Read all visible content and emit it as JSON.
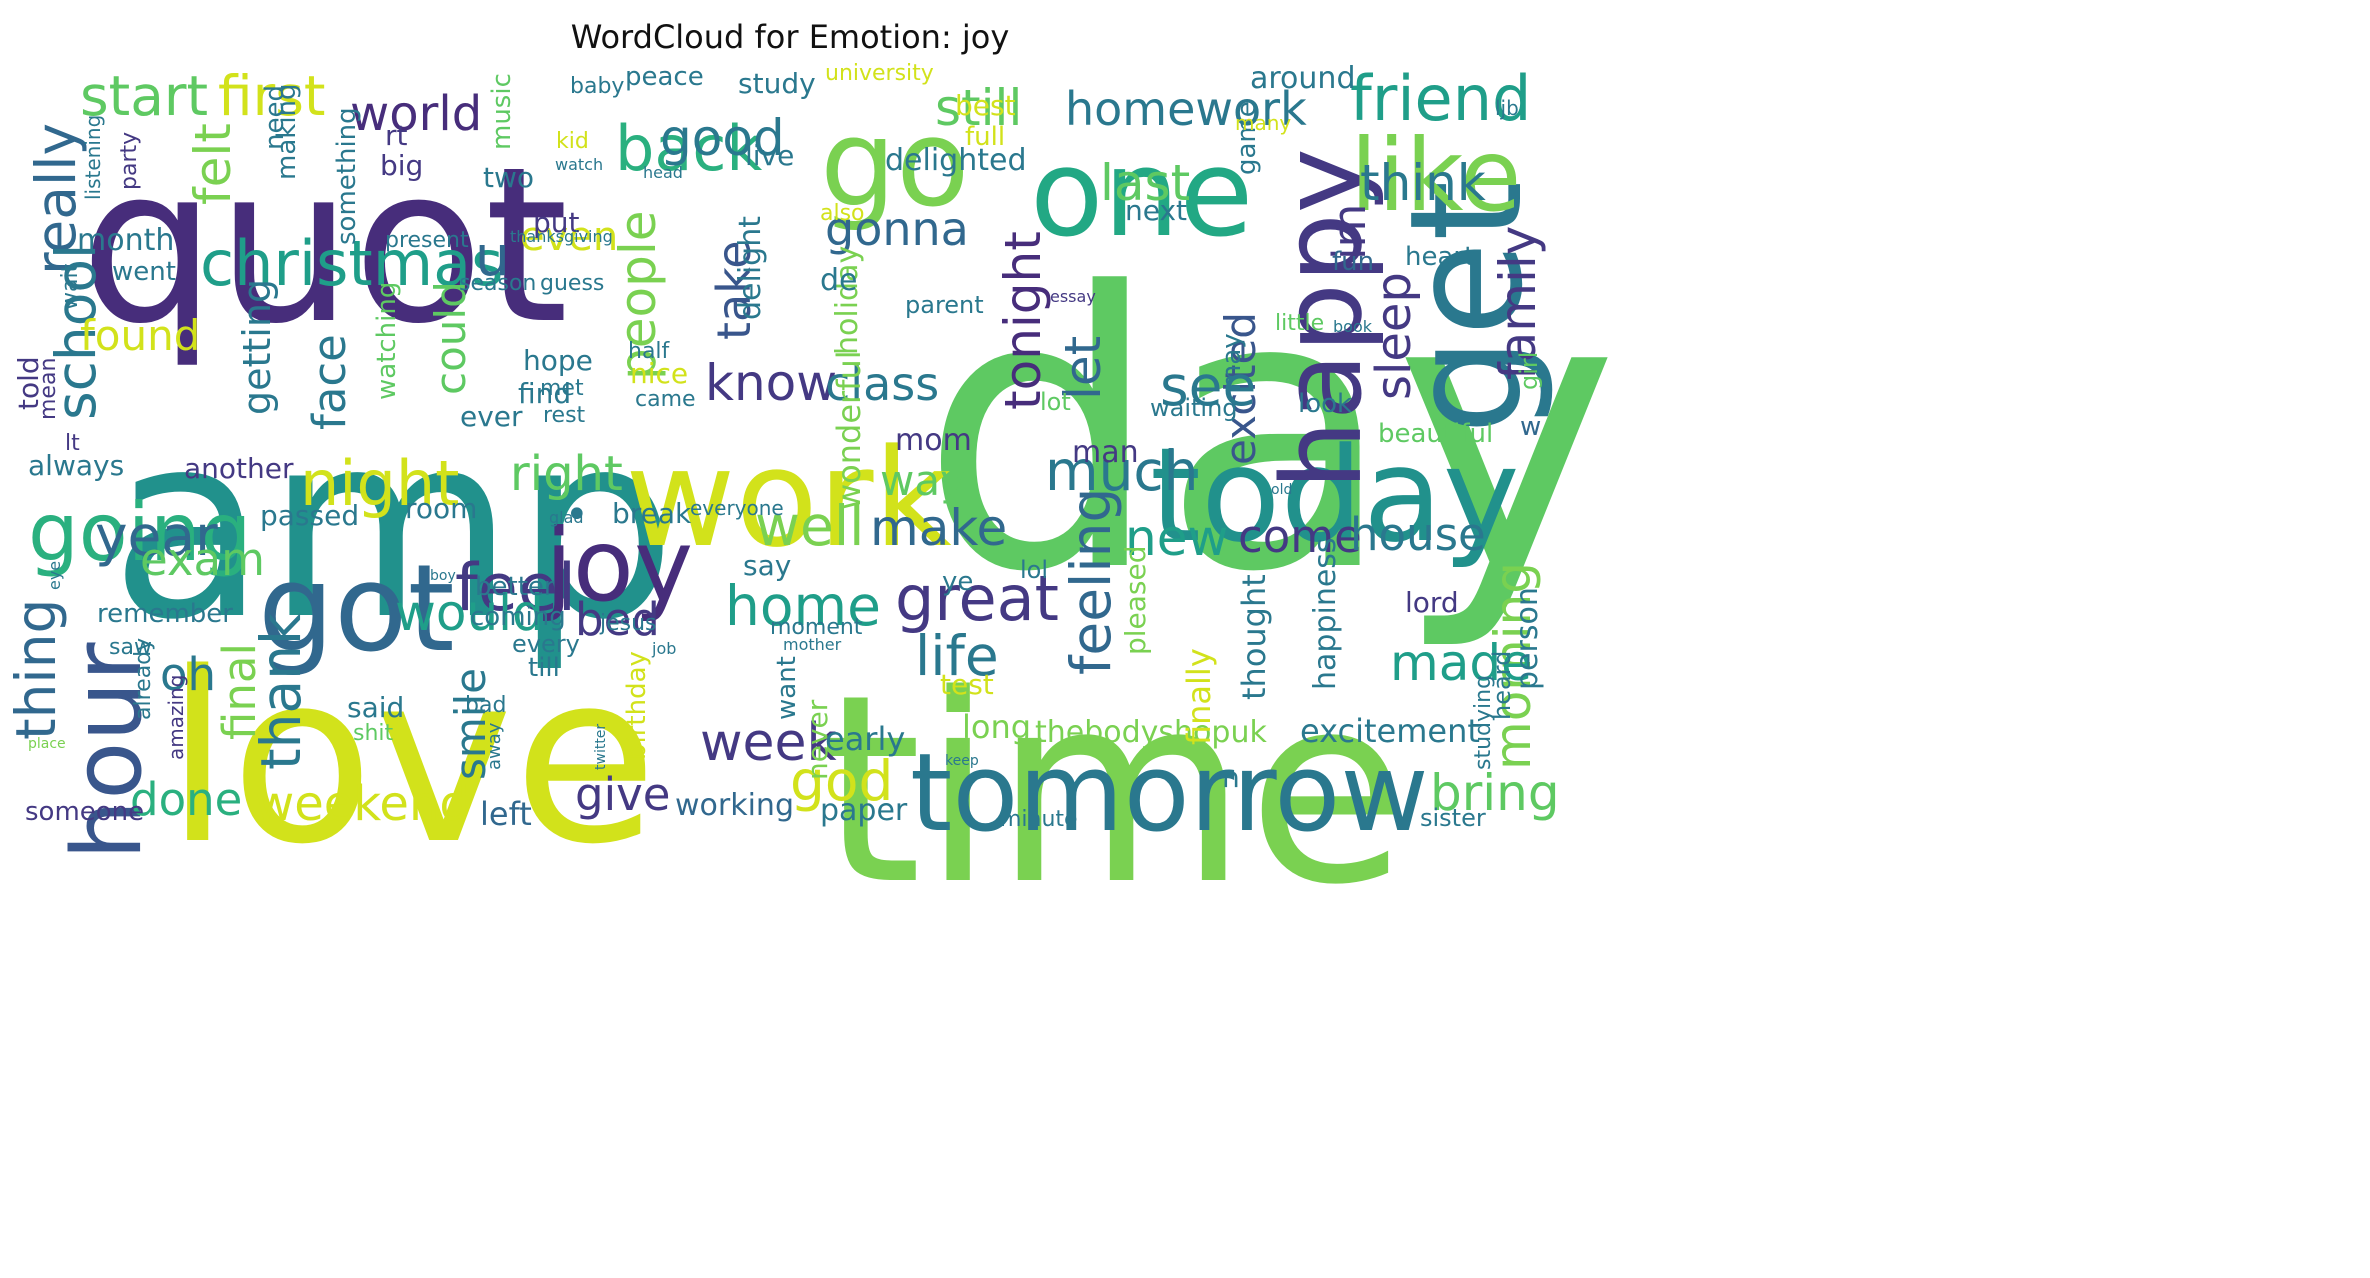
{
  "title": "WordCloud for Emotion: joy",
  "words": [
    {
      "text": "day",
      "color": "#5ec962"
    },
    {
      "text": "amp",
      "color": "#21918c"
    },
    {
      "text": "love",
      "color": "#d2e21b"
    },
    {
      "text": "time",
      "color": "#7ad151"
    },
    {
      "text": "quot",
      "color": "#472d7b"
    },
    {
      "text": "work",
      "color": "#d2e21b"
    },
    {
      "text": "get",
      "color": "#2a788e"
    },
    {
      "text": "today",
      "color": "#21918c"
    },
    {
      "text": "tomorrow",
      "color": "#2a788e"
    },
    {
      "text": "one",
      "color": "#22a884"
    },
    {
      "text": "happy",
      "color": "#443983"
    },
    {
      "text": "go",
      "color": "#7ad151"
    },
    {
      "text": "got",
      "color": "#31688e"
    },
    {
      "text": "joy",
      "color": "#472d7b"
    },
    {
      "text": "hour",
      "color": "#39568c"
    },
    {
      "text": "going",
      "color": "#2ab07f"
    },
    {
      "text": "like",
      "color": "#7ad151"
    },
    {
      "text": "friend",
      "color": "#1f9e89"
    },
    {
      "text": "back",
      "color": "#2ab07f"
    },
    {
      "text": "start",
      "color": "#5ec962"
    },
    {
      "text": "first",
      "color": "#d2e21b"
    },
    {
      "text": "world",
      "color": "#472d7b"
    },
    {
      "text": "still",
      "color": "#5ec962"
    },
    {
      "text": "homework",
      "color": "#2a788e"
    },
    {
      "text": "really",
      "color": "#31688e"
    },
    {
      "text": "school",
      "color": "#2a788e"
    },
    {
      "text": "christmas",
      "color": "#1f9e89"
    },
    {
      "text": "u",
      "color": "#31688e"
    },
    {
      "text": "people",
      "color": "#7ad151"
    },
    {
      "text": "good",
      "color": "#2a788e"
    },
    {
      "text": "think",
      "color": "#2a788e"
    },
    {
      "text": "family",
      "color": "#443983"
    },
    {
      "text": "night",
      "color": "#d2e21b"
    },
    {
      "text": "feel",
      "color": "#443983"
    },
    {
      "text": "felt",
      "color": "#7ad151"
    },
    {
      "text": "gonna",
      "color": "#31688e"
    },
    {
      "text": "tonight",
      "color": "#472d7b"
    },
    {
      "text": "last",
      "color": "#5ec962"
    },
    {
      "text": "im",
      "color": "#443983"
    },
    {
      "text": "sleep",
      "color": "#443983"
    },
    {
      "text": "excited",
      "color": "#39568c"
    },
    {
      "text": "see",
      "color": "#2a788e"
    },
    {
      "text": "know",
      "color": "#443983"
    },
    {
      "text": "class",
      "color": "#2a788e"
    },
    {
      "text": "take",
      "color": "#39568c"
    },
    {
      "text": "even",
      "color": "#d2e21b"
    },
    {
      "text": "found",
      "color": "#d2e21b"
    },
    {
      "text": "could",
      "color": "#5ec962"
    },
    {
      "text": "face",
      "color": "#2a788e"
    },
    {
      "text": "getting",
      "color": "#2a788e"
    },
    {
      "text": "let",
      "color": "#31688e"
    },
    {
      "text": "right",
      "color": "#5ec962"
    },
    {
      "text": "much",
      "color": "#2a788e"
    },
    {
      "text": "way",
      "color": "#5ec962"
    },
    {
      "text": "make",
      "color": "#31688e"
    },
    {
      "text": "well",
      "color": "#7ad151"
    },
    {
      "text": "year",
      "color": "#31688e"
    },
    {
      "text": "exam",
      "color": "#5ec962"
    },
    {
      "text": "new",
      "color": "#1f9e89"
    },
    {
      "text": "come",
      "color": "#443983"
    },
    {
      "text": "house",
      "color": "#2a788e"
    },
    {
      "text": "feeling",
      "color": "#31688e"
    },
    {
      "text": "morning",
      "color": "#7ad151"
    },
    {
      "text": "great",
      "color": "#443983"
    },
    {
      "text": "home",
      "color": "#1f9e89"
    },
    {
      "text": "would",
      "color": "#1f9e89"
    },
    {
      "text": "bed",
      "color": "#443983"
    },
    {
      "text": "thing",
      "color": "#31688e"
    },
    {
      "text": "oh",
      "color": "#2a788e"
    },
    {
      "text": "thank",
      "color": "#2a788e"
    },
    {
      "text": "life",
      "color": "#2a788e"
    },
    {
      "text": "made",
      "color": "#1f9e89"
    },
    {
      "text": "final",
      "color": "#7ad151"
    },
    {
      "text": "smile",
      "color": "#2a788e"
    },
    {
      "text": "week",
      "color": "#443983"
    },
    {
      "text": "god",
      "color": "#d2e21b"
    },
    {
      "text": "give",
      "color": "#443983"
    },
    {
      "text": "done",
      "color": "#2ab07f"
    },
    {
      "text": "weekend",
      "color": "#d2e21b"
    },
    {
      "text": "bring",
      "color": "#5ec962"
    },
    {
      "text": "working",
      "color": "#31688e"
    },
    {
      "text": "paper",
      "color": "#2a788e"
    },
    {
      "text": "left",
      "color": "#31688e"
    },
    {
      "text": "someone",
      "color": "#443983"
    },
    {
      "text": "minute",
      "color": "#2a788e"
    },
    {
      "text": "sister",
      "color": "#2a788e"
    },
    {
      "text": "excitement",
      "color": "#2a788e"
    },
    {
      "text": "thebodyshopuk",
      "color": "#7ad151"
    },
    {
      "text": "long",
      "color": "#7ad151"
    },
    {
      "text": "early",
      "color": "#2a788e"
    },
    {
      "text": "never",
      "color": "#7ad151"
    },
    {
      "text": "test",
      "color": "#d2e21b"
    },
    {
      "text": "finally",
      "color": "#d2e21b"
    },
    {
      "text": "thought",
      "color": "#2a788e"
    },
    {
      "text": "happiness",
      "color": "#2a788e"
    },
    {
      "text": "person",
      "color": "#2a788e"
    },
    {
      "text": "heard",
      "color": "#2a788e"
    },
    {
      "text": "studying",
      "color": "#2a788e"
    },
    {
      "text": "lord",
      "color": "#443983"
    },
    {
      "text": "pleased",
      "color": "#7ad151"
    },
    {
      "text": "wonderful",
      "color": "#7ad151"
    },
    {
      "text": "holiday",
      "color": "#7ad151"
    },
    {
      "text": "mom",
      "color": "#443983"
    },
    {
      "text": "man",
      "color": "#443983"
    },
    {
      "text": "lot",
      "color": "#5ec962"
    },
    {
      "text": "look",
      "color": "#2a788e"
    },
    {
      "text": "beautiful",
      "color": "#5ec962"
    },
    {
      "text": "waiting",
      "color": "#2a788e"
    },
    {
      "text": "w",
      "color": "#31688e"
    },
    {
      "text": "girl",
      "color": "#5ec962"
    },
    {
      "text": "may",
      "color": "#2a788e"
    },
    {
      "text": "little",
      "color": "#5ec962"
    },
    {
      "text": "heart",
      "color": "#2a788e"
    },
    {
      "text": "fun",
      "color": "#31688e"
    },
    {
      "text": "essay",
      "color": "#443983"
    },
    {
      "text": "book",
      "color": "#2a788e"
    },
    {
      "text": "parent",
      "color": "#2a788e"
    },
    {
      "text": "delight",
      "color": "#2a788e"
    },
    {
      "text": "de",
      "color": "#2a788e"
    },
    {
      "text": "next",
      "color": "#2a788e"
    },
    {
      "text": "also",
      "color": "#d2e21b"
    },
    {
      "text": "delighted",
      "color": "#2a788e"
    },
    {
      "text": "live",
      "color": "#2a788e"
    },
    {
      "text": "full",
      "color": "#d2e21b"
    },
    {
      "text": "best",
      "color": "#d2e21b"
    },
    {
      "text": "game",
      "color": "#2a788e"
    },
    {
      "text": "many",
      "color": "#d2e21b"
    },
    {
      "text": "around",
      "color": "#2a788e"
    },
    {
      "text": "ljb",
      "color": "#2a788e"
    },
    {
      "text": "study",
      "color": "#2a788e"
    },
    {
      "text": "university",
      "color": "#d2e21b"
    },
    {
      "text": "peace",
      "color": "#2a788e"
    },
    {
      "text": "baby",
      "color": "#2a788e"
    },
    {
      "text": "music",
      "color": "#5ec962"
    },
    {
      "text": "kid",
      "color": "#d2e21b"
    },
    {
      "text": "watch",
      "color": "#2a788e"
    },
    {
      "text": "head",
      "color": "#2a788e"
    },
    {
      "text": "rt",
      "color": "#443983"
    },
    {
      "text": "big",
      "color": "#443983"
    },
    {
      "text": "need",
      "color": "#2a788e"
    },
    {
      "text": "making",
      "color": "#2a788e"
    },
    {
      "text": "something",
      "color": "#2a788e"
    },
    {
      "text": "two",
      "color": "#2a788e"
    },
    {
      "text": "put",
      "color": "#443983"
    },
    {
      "text": "present",
      "color": "#2a788e"
    },
    {
      "text": "thanksgiving",
      "color": "#2a788e"
    },
    {
      "text": "guess",
      "color": "#2a788e"
    },
    {
      "text": "season",
      "color": "#2a788e"
    },
    {
      "text": "party",
      "color": "#443983"
    },
    {
      "text": "listening",
      "color": "#2a788e"
    },
    {
      "text": "month",
      "color": "#2a788e"
    },
    {
      "text": "went",
      "color": "#2a788e"
    },
    {
      "text": "wait",
      "color": "#2a788e"
    },
    {
      "text": "told",
      "color": "#443983"
    },
    {
      "text": "mean",
      "color": "#443983"
    },
    {
      "text": "lt",
      "color": "#443983"
    },
    {
      "text": "always",
      "color": "#2a788e"
    },
    {
      "text": "another",
      "color": "#443983"
    },
    {
      "text": "watching",
      "color": "#5ec962"
    },
    {
      "text": "passed",
      "color": "#2a788e"
    },
    {
      "text": "room",
      "color": "#2a788e"
    },
    {
      "text": "break",
      "color": "#2a788e"
    },
    {
      "text": "everyone",
      "color": "#2a788e"
    },
    {
      "text": "ever",
      "color": "#2a788e"
    },
    {
      "text": "met",
      "color": "#2a788e"
    },
    {
      "text": "half",
      "color": "#2a788e"
    },
    {
      "text": "hope",
      "color": "#2a788e"
    },
    {
      "text": "find",
      "color": "#2a788e"
    },
    {
      "text": "nice",
      "color": "#d2e21b"
    },
    {
      "text": "came",
      "color": "#2a788e"
    },
    {
      "text": "rest",
      "color": "#2a788e"
    },
    {
      "text": "old",
      "color": "#2a788e"
    },
    {
      "text": "glad",
      "color": "#2a788e"
    },
    {
      "text": "say",
      "color": "#2a788e"
    },
    {
      "text": "ye",
      "color": "#2a788e"
    },
    {
      "text": "lol",
      "color": "#2a788e"
    },
    {
      "text": "better",
      "color": "#2a788e"
    },
    {
      "text": "remember",
      "color": "#2a788e"
    },
    {
      "text": "coming",
      "color": "#2a788e"
    },
    {
      "text": "every",
      "color": "#2a788e"
    },
    {
      "text": "till",
      "color": "#2a788e"
    },
    {
      "text": "jesus",
      "color": "#2a788e"
    },
    {
      "text": "job",
      "color": "#2a788e"
    },
    {
      "text": "moment",
      "color": "#2a788e"
    },
    {
      "text": "mother",
      "color": "#2a788e"
    },
    {
      "text": "want",
      "color": "#2a788e"
    },
    {
      "text": "birthday",
      "color": "#d2e21b"
    },
    {
      "text": "said",
      "color": "#2a788e"
    },
    {
      "text": "shit",
      "color": "#5ec962"
    },
    {
      "text": "bad",
      "color": "#2a788e"
    },
    {
      "text": "saw",
      "color": "#2a788e"
    },
    {
      "text": "already",
      "color": "#2a788e"
    },
    {
      "text": "amazing",
      "color": "#443983"
    },
    {
      "text": "away",
      "color": "#2a788e"
    },
    {
      "text": "twitter",
      "color": "#2a788e"
    },
    {
      "text": "keep",
      "color": "#2a788e"
    },
    {
      "text": "place",
      "color": "#7ad151"
    },
    {
      "text": "eye",
      "color": "#2a788e"
    },
    {
      "text": "boy",
      "color": "#2a788e"
    },
    {
      "text": "n",
      "color": "#2a788e"
    },
    {
      "text": "•",
      "color": "#2a788e"
    }
  ]
}
